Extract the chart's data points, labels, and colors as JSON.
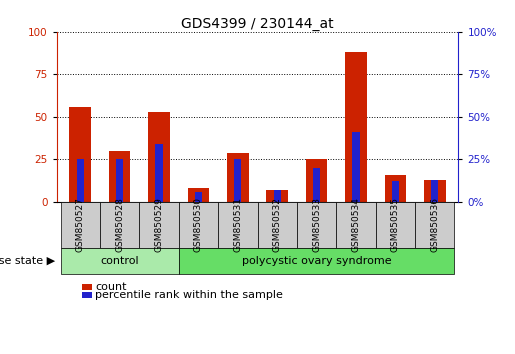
{
  "title": "GDS4399 / 230144_at",
  "samples": [
    "GSM850527",
    "GSM850528",
    "GSM850529",
    "GSM850530",
    "GSM850531",
    "GSM850532",
    "GSM850533",
    "GSM850534",
    "GSM850535",
    "GSM850536"
  ],
  "count_values": [
    56,
    30,
    53,
    8,
    29,
    7,
    25,
    88,
    16,
    13
  ],
  "percentile_values": [
    25,
    25,
    34,
    6,
    25,
    7,
    20,
    41,
    12,
    13
  ],
  "red_bar_width": 0.55,
  "blue_bar_width": 0.18,
  "red_color": "#cc2200",
  "blue_color": "#2222cc",
  "ylim": [
    0,
    100
  ],
  "yticks": [
    0,
    25,
    50,
    75,
    100
  ],
  "grid_color": "black",
  "control_samples": 3,
  "control_label": "control",
  "disease_label": "polycystic ovary syndrome",
  "disease_state_label": "disease state",
  "legend_count": "count",
  "legend_percentile": "percentile rank within the sample",
  "control_color": "#aaeaaa",
  "disease_color": "#66dd66",
  "tick_label_bg": "#cccccc",
  "left_axis_color": "#cc2200",
  "right_axis_color": "#2222cc",
  "title_fontsize": 10,
  "tick_fontsize": 7.5,
  "label_fontsize": 8,
  "legend_fontsize": 8,
  "sample_label_fontsize": 6.5
}
